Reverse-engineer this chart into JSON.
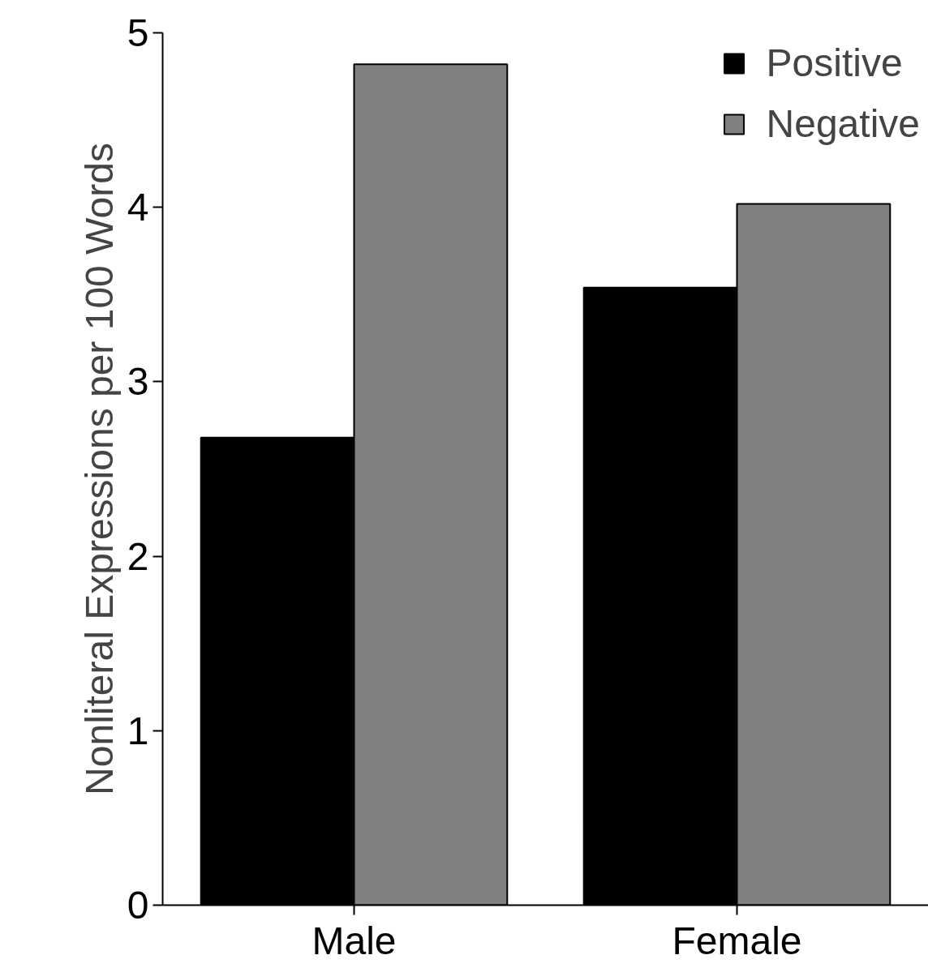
{
  "chart_data": {
    "type": "bar",
    "ylabel": "Nonliteral Expressions per 100 Words",
    "categories": [
      "Male",
      "Female"
    ],
    "series": [
      {
        "name": "Positive",
        "color": "#000000",
        "values": [
          2.68,
          3.54
        ]
      },
      {
        "name": "Negative",
        "color": "#808080",
        "values": [
          4.82,
          4.02
        ]
      }
    ],
    "ylim": [
      0,
      5
    ],
    "yticks": [
      0,
      1,
      2,
      3,
      4,
      5
    ],
    "grid": false,
    "legend": "top right"
  }
}
